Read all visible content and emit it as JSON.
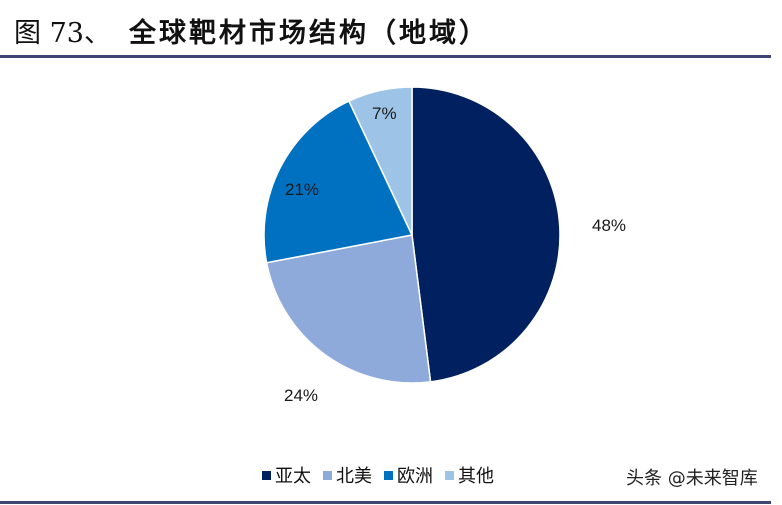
{
  "header": {
    "figure_num": "图 73、",
    "title": "全球靶材市场结构（地域）"
  },
  "colors": {
    "rule": "#3f4573",
    "亚太": "#002060",
    "北美": "#8eaadb",
    "欧洲": "#0070c0",
    "其他": "#9dc3e6"
  },
  "legend": [
    {
      "label": "亚太",
      "color": "#002060"
    },
    {
      "label": "北美",
      "color": "#8eaadb"
    },
    {
      "label": "欧洲",
      "color": "#0070c0"
    },
    {
      "label": "其他",
      "color": "#9dc3e6"
    }
  ],
  "labels": {
    "asia": "48%",
    "na": "24%",
    "eu": "21%",
    "other": "7%"
  },
  "watermark": "头条 @未来智库",
  "chart_data": {
    "type": "pie",
    "title": "全球靶材市场结构（地域）",
    "categories": [
      "亚太",
      "北美",
      "欧洲",
      "其他"
    ],
    "values": [
      48,
      24,
      21,
      7
    ],
    "unit": "%",
    "start_angle": "12 o'clock, clockwise",
    "legend_position": "bottom"
  }
}
